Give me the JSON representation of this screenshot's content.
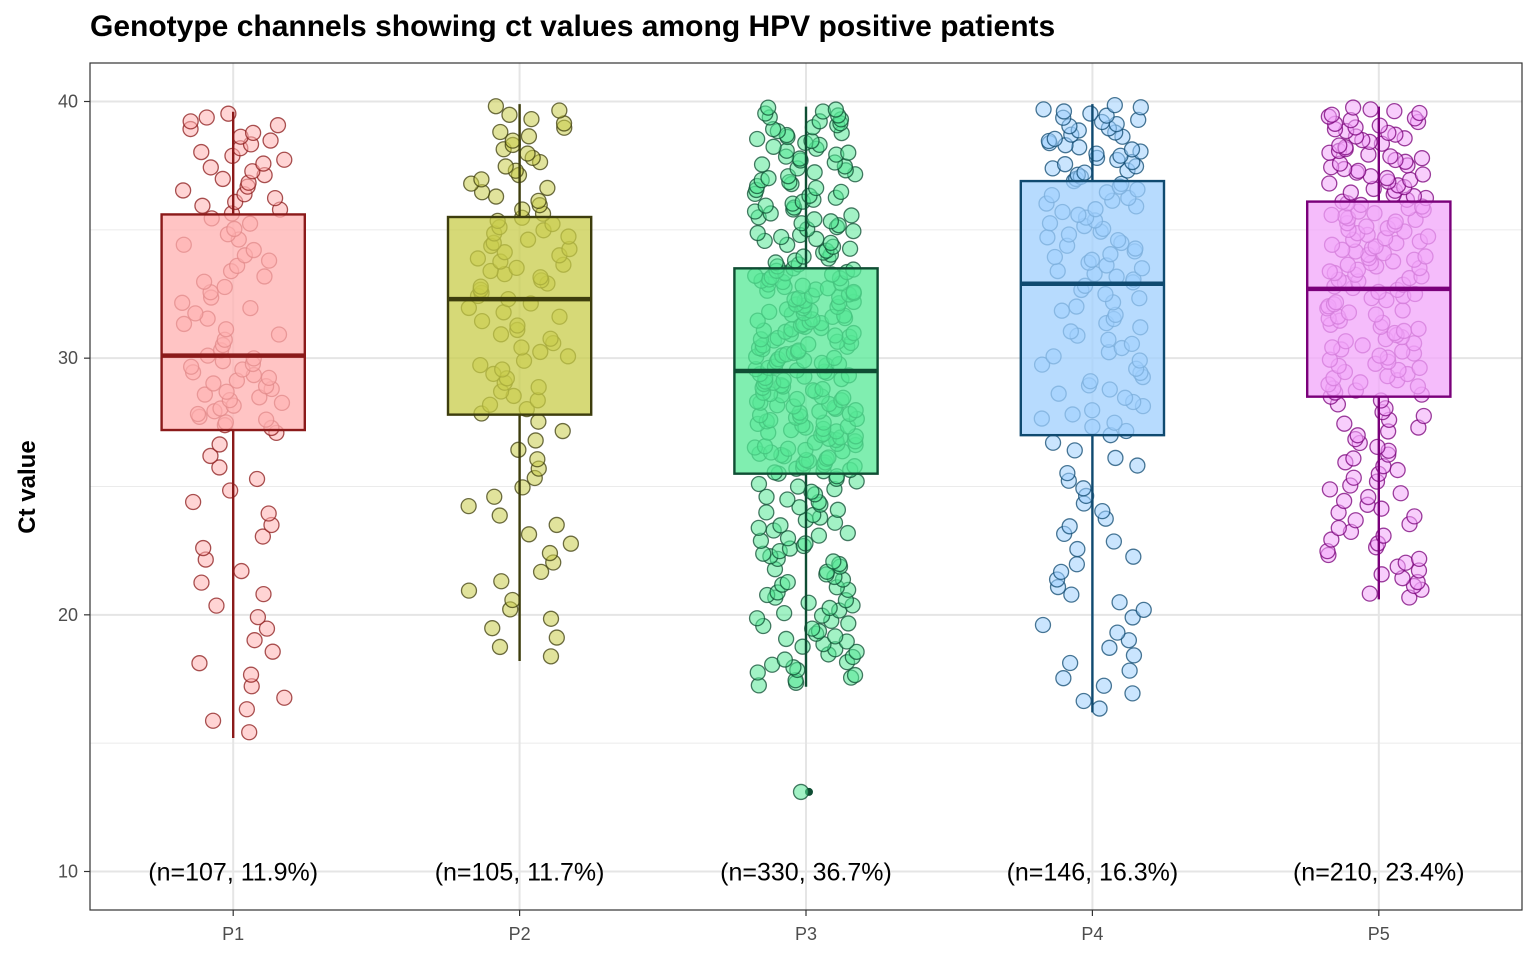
{
  "chart_data": {
    "type": "box",
    "title": "Genotype channels showing ct values among HPV positive patients",
    "xlabel": "",
    "ylabel": "Ct value",
    "ylim": [
      8.5,
      41.5
    ],
    "yticks": [
      10,
      20,
      30,
      40
    ],
    "grid": true,
    "legend": "none",
    "categories": [
      "P1",
      "P2",
      "P3",
      "P4",
      "P5"
    ],
    "annotation_y": 10,
    "series": [
      {
        "category": "P1",
        "count": 107,
        "annotation": "(n=107, 11.9%)",
        "fill": "#ffb0b0",
        "stroke": "#8b1a1a",
        "min": 15.2,
        "q1": 27.2,
        "median": 30.1,
        "q3": 35.6,
        "max": 39.6,
        "outliers": []
      },
      {
        "category": "P2",
        "count": 105,
        "annotation": "(n=105, 11.7%)",
        "fill": "#c8cc4a",
        "stroke": "#3d3d0d",
        "min": 18.2,
        "q1": 27.8,
        "median": 32.3,
        "q3": 35.5,
        "max": 39.9,
        "outliers": []
      },
      {
        "category": "P3",
        "count": 330,
        "annotation": "(n=330, 36.7%)",
        "fill": "#55e896",
        "stroke": "#0f4d33",
        "min": 17.2,
        "q1": 25.5,
        "median": 29.5,
        "q3": 33.5,
        "max": 39.8,
        "outliers": [
          13.1
        ]
      },
      {
        "category": "P4",
        "count": 146,
        "annotation": "(n=146, 16.3%)",
        "fill": "#9fcffd",
        "stroke": "#0f4a70",
        "min": 16.2,
        "q1": 27.0,
        "median": 32.9,
        "q3": 36.9,
        "max": 39.9,
        "outliers": []
      },
      {
        "category": "P5",
        "count": 210,
        "annotation": "(n=210, 23.4%)",
        "fill": "#f2a6fa",
        "stroke": "#7a007a",
        "min": 20.6,
        "q1": 28.5,
        "median": 32.7,
        "q3": 36.1,
        "max": 39.8,
        "outliers": []
      }
    ]
  }
}
